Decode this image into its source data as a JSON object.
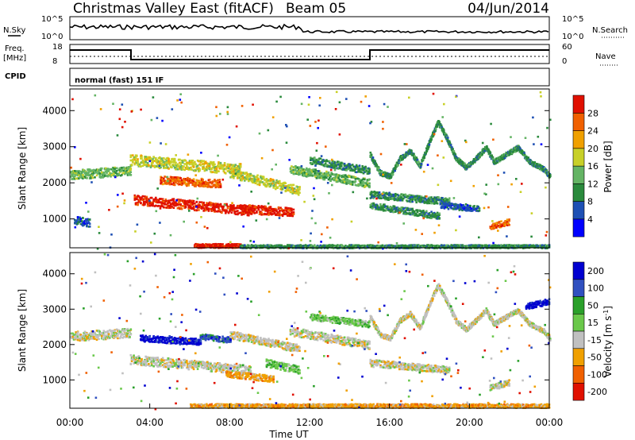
{
  "header": {
    "title": "Christmas Valley East (fitACF)",
    "beam": "Beam 05",
    "date": "04/Jun/2014"
  },
  "sky_panel": {
    "left_label": "N.Sky",
    "left_ticks": [
      "10^5",
      "10^0"
    ],
    "right_ticks": [
      "10^5",
      "10^0"
    ],
    "right_label": "N.Search"
  },
  "freq_panel": {
    "left_label_1": "Freq.",
    "left_label_2": "[MHz]",
    "left_ticks": [
      "18",
      "8"
    ],
    "right_ticks": [
      "60",
      "0"
    ],
    "right_label": "Nave"
  },
  "cpid": {
    "label": "CPID",
    "value": "normal (fast) 151 IF"
  },
  "colors": {
    "power_scale": [
      "#0000ff",
      "#1e50b4",
      "#2a8a3c",
      "#64b464",
      "#c8d028",
      "#f0a000",
      "#f06000",
      "#e01000"
    ],
    "velocity_scale": [
      "#0000d0",
      "#3050c0",
      "#2aa02a",
      "#6ac84a",
      "#c0c0c0",
      "#f0a000",
      "#f06000",
      "#e01000"
    ],
    "ground_scatter": "#b0b0b0"
  },
  "chart_data": [
    {
      "type": "heatmap",
      "name": "power-panel",
      "ylabel": "Slant Range [km]",
      "xlabel": "",
      "ylim": [
        200,
        4600
      ],
      "yticks": [
        "1000",
        "2000",
        "3000",
        "4000"
      ],
      "xlim_hours": [
        0,
        24
      ],
      "colorbar": {
        "label": "Power [dB]",
        "ticks": [
          "4",
          "8",
          "12",
          "16",
          "20",
          "24",
          "28"
        ]
      },
      "bands": [
        {
          "t0": 0.0,
          "t1": 3.0,
          "r_start": 2250,
          "r_end": 2350,
          "width": 260,
          "level": 3
        },
        {
          "t0": 0.2,
          "t1": 1.0,
          "r_start": 1000,
          "r_end": 900,
          "width": 220,
          "level": 1
        },
        {
          "t0": 3.2,
          "t1": 9.0,
          "r_start": 1550,
          "r_end": 1250,
          "width": 260,
          "level": 7
        },
        {
          "t0": 3.0,
          "t1": 8.5,
          "r_start": 2650,
          "r_end": 2400,
          "width": 300,
          "level": 4
        },
        {
          "t0": 4.5,
          "t1": 7.5,
          "r_start": 2100,
          "r_end": 2000,
          "width": 220,
          "level": 6
        },
        {
          "t0": 8.6,
          "t1": 11.2,
          "r_start": 1300,
          "r_end": 1200,
          "width": 240,
          "level": 7
        },
        {
          "t0": 8.0,
          "t1": 11.5,
          "r_start": 2300,
          "r_end": 1800,
          "width": 260,
          "level": 4
        },
        {
          "t0": 11.0,
          "t1": 15.0,
          "r_start": 2400,
          "r_end": 2000,
          "width": 240,
          "level": 3
        },
        {
          "t0": 12.0,
          "t1": 15.0,
          "r_start": 2650,
          "r_end": 2350,
          "width": 200,
          "level": 2
        },
        {
          "t0": 15.0,
          "t1": 18.5,
          "r_start": 1400,
          "r_end": 1100,
          "width": 180,
          "level": 2
        },
        {
          "t0": 15.0,
          "t1": 19.0,
          "r_start": 1700,
          "r_end": 1500,
          "width": 200,
          "level": 2
        },
        {
          "t0": 18.5,
          "t1": 20.5,
          "r_start": 1400,
          "r_end": 1300,
          "width": 160,
          "level": 1
        },
        {
          "t0": 21.0,
          "t1": 22.0,
          "r_start": 800,
          "r_end": 950,
          "width": 160,
          "level": 6
        },
        {
          "t0": 6.2,
          "t1": 8.5,
          "r_start": 280,
          "r_end": 280,
          "width": 110,
          "level": 7
        },
        {
          "t0": 8.5,
          "t1": 24.0,
          "r_start": 260,
          "r_end": 260,
          "width": 90,
          "level": 2
        }
      ],
      "curves": [
        {
          "name": "arc-1",
          "points": [
            [
              15.0,
              2800
            ],
            [
              15.5,
              2300
            ],
            [
              16.0,
              2200
            ],
            [
              16.5,
              2700
            ],
            [
              17.0,
              2900
            ],
            [
              17.5,
              2500
            ],
            [
              18.0,
              3200
            ],
            [
              18.4,
              3700
            ],
            [
              18.8,
              3300
            ],
            [
              19.3,
              2700
            ],
            [
              19.8,
              2450
            ],
            [
              20.3,
              2700
            ],
            [
              20.8,
              3000
            ],
            [
              21.2,
              2600
            ],
            [
              21.8,
              2800
            ],
            [
              22.4,
              3000
            ],
            [
              23.0,
              2600
            ],
            [
              23.7,
              2400
            ],
            [
              24.0,
              2200
            ]
          ],
          "width": 130,
          "level": 2
        }
      ]
    },
    {
      "type": "heatmap",
      "name": "velocity-panel",
      "ylabel": "Slant Range [km]",
      "xlabel": "Time UT",
      "ylim": [
        200,
        4600
      ],
      "yticks": [
        "1000",
        "2000",
        "3000",
        "4000"
      ],
      "xticks": [
        "00:00",
        "04:00",
        "08:00",
        "12:00",
        "16:00",
        "20:00",
        "00:00"
      ],
      "xlim_hours": [
        0,
        24
      ],
      "colorbar": {
        "label": "Velocity [m s^-1]",
        "ticks": [
          "200",
          "100",
          "50",
          "15",
          "-15",
          "-50",
          "-100",
          "-200"
        ]
      },
      "bands": [
        {
          "t0": 0.0,
          "t1": 3.0,
          "r_start": 2250,
          "r_end": 2350,
          "width": 260,
          "level": 4
        },
        {
          "t0": 3.0,
          "t1": 9.0,
          "r_start": 1600,
          "r_end": 1300,
          "width": 260,
          "level": 4
        },
        {
          "t0": 3.5,
          "t1": 6.5,
          "r_start": 2200,
          "r_end": 2100,
          "width": 180,
          "level": 0
        },
        {
          "t0": 6.5,
          "t1": 8.0,
          "r_start": 2250,
          "r_end": 2150,
          "width": 160,
          "level": 1
        },
        {
          "t0": 8.0,
          "t1": 11.5,
          "r_start": 2300,
          "r_end": 1900,
          "width": 220,
          "level": 4
        },
        {
          "t0": 9.8,
          "t1": 11.5,
          "r_start": 1500,
          "r_end": 1300,
          "width": 220,
          "level": 3
        },
        {
          "t0": 7.8,
          "t1": 10.2,
          "r_start": 1200,
          "r_end": 1050,
          "width": 180,
          "level": 5
        },
        {
          "t0": 11.0,
          "t1": 15.0,
          "r_start": 2400,
          "r_end": 2000,
          "width": 240,
          "level": 4
        },
        {
          "t0": 12.0,
          "t1": 15.0,
          "r_start": 2800,
          "r_end": 2600,
          "width": 180,
          "level": 3
        },
        {
          "t0": 15.0,
          "t1": 19.0,
          "r_start": 1500,
          "r_end": 1300,
          "width": 200,
          "level": 4
        },
        {
          "t0": 21.0,
          "t1": 22.0,
          "r_start": 800,
          "r_end": 950,
          "width": 160,
          "level": 4
        },
        {
          "t0": 22.8,
          "t1": 24.0,
          "r_start": 3100,
          "r_end": 3250,
          "width": 160,
          "level": 0
        },
        {
          "t0": 6.0,
          "t1": 24.0,
          "r_start": 290,
          "r_end": 290,
          "width": 110,
          "level": 5
        }
      ],
      "curves": [
        {
          "name": "arc-1",
          "points": [
            [
              15.0,
              2800
            ],
            [
              15.5,
              2300
            ],
            [
              16.0,
              2200
            ],
            [
              16.5,
              2700
            ],
            [
              17.0,
              2900
            ],
            [
              17.5,
              2500
            ],
            [
              18.0,
              3200
            ],
            [
              18.4,
              3700
            ],
            [
              18.8,
              3300
            ],
            [
              19.3,
              2700
            ],
            [
              19.8,
              2450
            ],
            [
              20.3,
              2700
            ],
            [
              20.8,
              3000
            ],
            [
              21.2,
              2600
            ],
            [
              21.8,
              2800
            ],
            [
              22.4,
              3000
            ],
            [
              23.0,
              2600
            ],
            [
              23.7,
              2400
            ],
            [
              24.0,
              2200
            ]
          ],
          "width": 130,
          "level": 4
        }
      ]
    }
  ]
}
